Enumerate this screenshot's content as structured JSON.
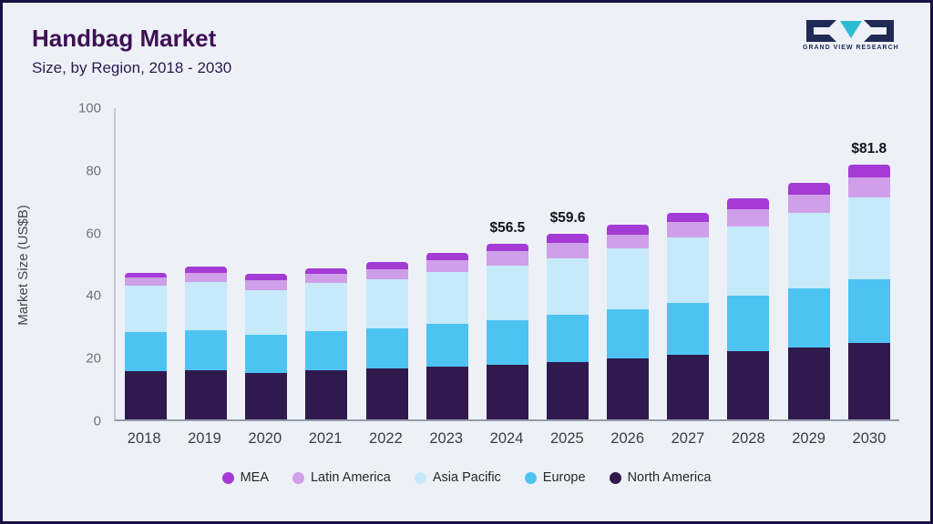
{
  "header": {
    "title": "Handbag Market",
    "subtitle": "Size, by Region, 2018 - 2030"
  },
  "logo": {
    "brand": "GRAND VIEW RESEARCH"
  },
  "chart_data": {
    "type": "bar",
    "stacked": true,
    "title": "Handbag Market Size, by Region, 2018 - 2030",
    "xlabel": "",
    "ylabel": "Market Size (US$B)",
    "ylim": [
      0,
      100
    ],
    "yticks": [
      0,
      20,
      40,
      60,
      80,
      100
    ],
    "grid": false,
    "legend_position": "bottom",
    "categories": [
      "2018",
      "2019",
      "2020",
      "2021",
      "2022",
      "2023",
      "2024",
      "2025",
      "2026",
      "2027",
      "2028",
      "2029",
      "2030"
    ],
    "series": [
      {
        "name": "North America",
        "color": "#301a4d",
        "values": [
          15.5,
          15.8,
          15.0,
          15.7,
          16.3,
          17.0,
          17.5,
          18.5,
          19.5,
          20.8,
          21.8,
          23.0,
          24.5
        ]
      },
      {
        "name": "Europe",
        "color": "#4dc3f2",
        "values": [
          12.5,
          13.0,
          12.3,
          12.8,
          13.0,
          13.7,
          14.5,
          15.0,
          15.8,
          16.7,
          17.9,
          19.2,
          20.5
        ]
      },
      {
        "name": "Asia Pacific",
        "color": "#c6eaf9",
        "values": [
          15.0,
          15.5,
          14.2,
          15.3,
          15.7,
          16.8,
          17.5,
          18.3,
          19.7,
          20.9,
          22.3,
          24.2,
          26.4
        ]
      },
      {
        "name": "Latin America",
        "color": "#cf9fe9",
        "values": [
          2.5,
          2.8,
          3.2,
          2.9,
          3.4,
          3.6,
          4.5,
          5.0,
          4.5,
          5.1,
          5.5,
          5.8,
          6.4
        ]
      },
      {
        "name": "MEA",
        "color": "#a43bd4",
        "values": [
          1.5,
          1.9,
          2.0,
          1.8,
          2.1,
          2.3,
          2.5,
          2.8,
          3.0,
          3.0,
          3.5,
          3.8,
          4.0
        ]
      }
    ],
    "legend_order": [
      "MEA",
      "Latin America",
      "Asia Pacific",
      "Europe",
      "North America"
    ],
    "annotations": [
      {
        "category": "2024",
        "label": "$56.5"
      },
      {
        "category": "2025",
        "label": "$59.6"
      },
      {
        "category": "2030",
        "label": "$81.8"
      }
    ]
  }
}
